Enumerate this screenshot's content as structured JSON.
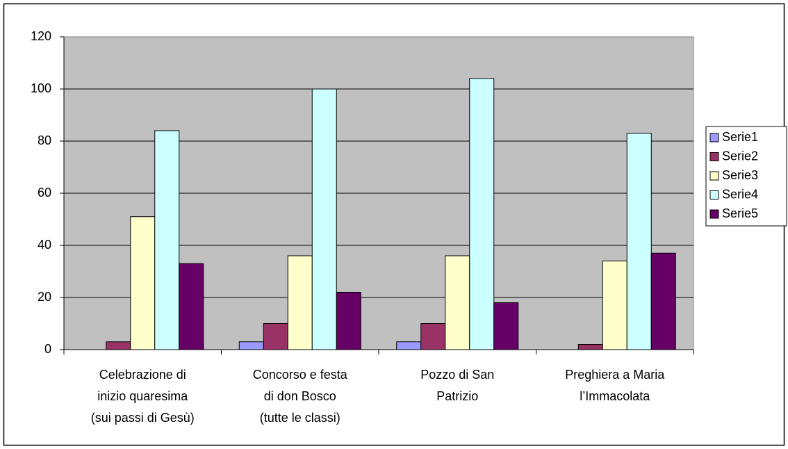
{
  "chart_data": {
    "type": "bar",
    "categories": [
      "Celebrazione di\ninizio quaresima\n(sui passi di Gesù)",
      "Concorso e festa\ndi don Bosco\n(tutte le classi)",
      "Pozzo di San\nPatrizio",
      "Preghiera a Maria\nl’Immacolata"
    ],
    "series": [
      {
        "name": "Serie1",
        "color": "#9999ff",
        "values": [
          0,
          3,
          3,
          0
        ]
      },
      {
        "name": "Serie2",
        "color": "#993366",
        "values": [
          3,
          10,
          10,
          2
        ]
      },
      {
        "name": "Serie3",
        "color": "#ffffcc",
        "values": [
          51,
          36,
          36,
          34
        ]
      },
      {
        "name": "Serie4",
        "color": "#ccffff",
        "values": [
          84,
          100,
          104,
          83
        ]
      },
      {
        "name": "Serie5",
        "color": "#660066",
        "values": [
          33,
          22,
          18,
          37
        ]
      }
    ],
    "ylim": [
      0,
      120
    ],
    "yticks": [
      0,
      20,
      40,
      60,
      80,
      100,
      120
    ],
    "grid": true,
    "legend": "right"
  }
}
